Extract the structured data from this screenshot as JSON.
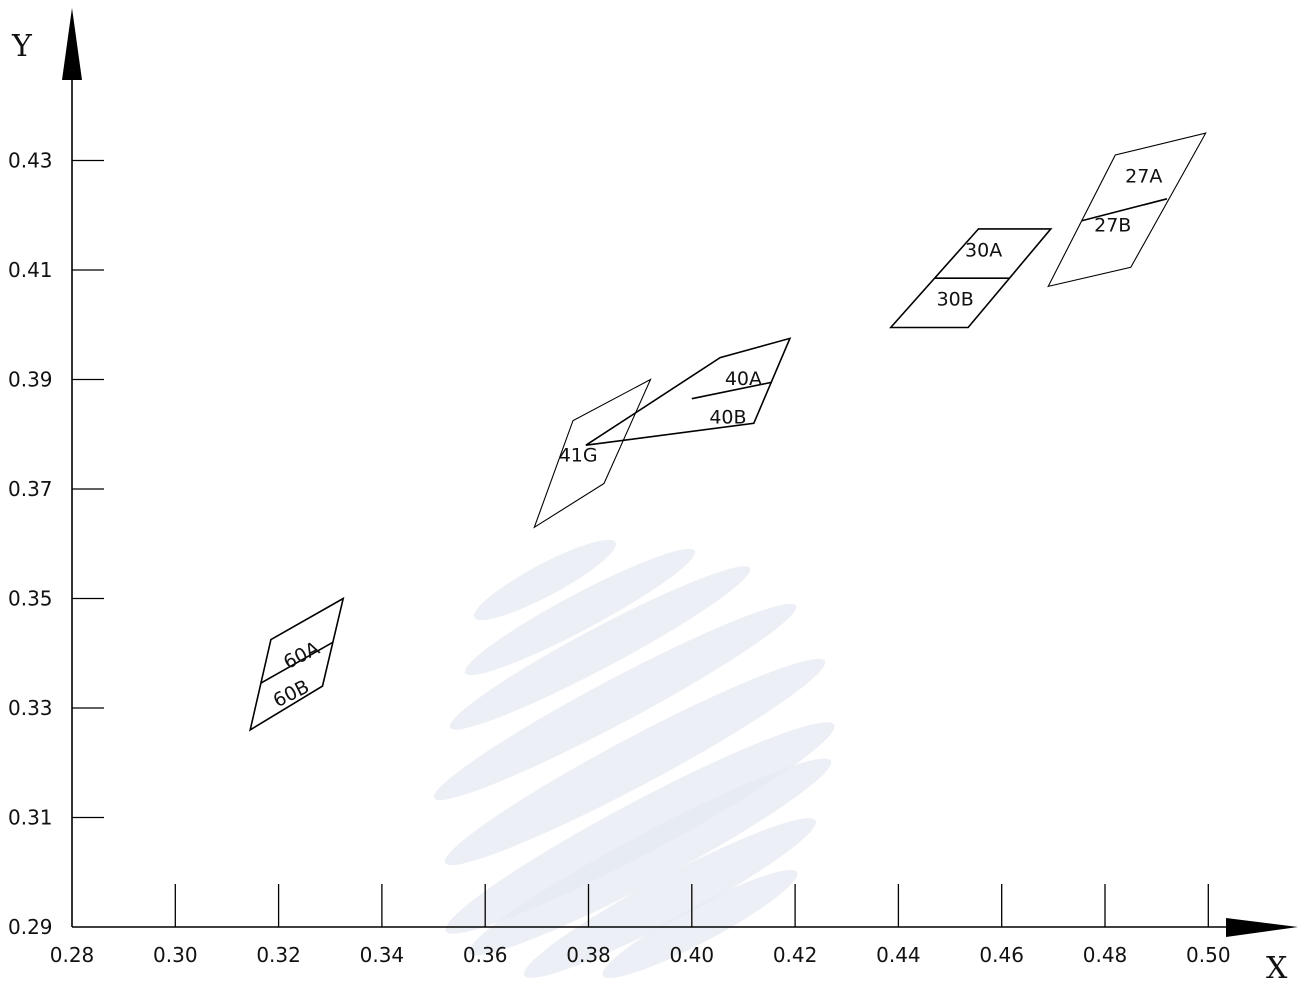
{
  "chart_data": {
    "type": "diagram",
    "axes": {
      "x": {
        "label": "X",
        "range": [
          0.28,
          0.52
        ],
        "ticks": [
          "0.28",
          "0.30",
          "0.32",
          "0.34",
          "0.36",
          "0.38",
          "0.40",
          "0.42",
          "0.44",
          "0.46",
          "0.48",
          "0.50"
        ]
      },
      "y": {
        "label": "Y",
        "range": [
          0.29,
          0.445
        ],
        "ticks": [
          "0.29",
          "0.31",
          "0.33",
          "0.35",
          "0.37",
          "0.39",
          "0.41",
          "0.43"
        ]
      }
    },
    "grid": false,
    "regions": [
      {
        "name": "60",
        "label_a": "60A",
        "label_b": "60B",
        "corners": [
          [
            0.3145,
            0.326
          ],
          [
            0.3285,
            0.334
          ],
          [
            0.3325,
            0.35
          ],
          [
            0.3185,
            0.3425
          ]
        ],
        "divider": [
          [
            0.3165,
            0.3345
          ],
          [
            0.3305,
            0.342
          ]
        ],
        "label_a_pos": [
          0.3245,
          0.3395
        ],
        "label_b_pos": [
          0.3225,
          0.3325
        ]
      },
      {
        "name": "41G",
        "label": "41G",
        "corners": [
          [
            0.3695,
            0.363
          ],
          [
            0.383,
            0.371
          ],
          [
            0.392,
            0.39
          ],
          [
            0.377,
            0.3825
          ]
        ],
        "label_pos": [
          0.378,
          0.376
        ]
      },
      {
        "name": "40",
        "label_a": "40A",
        "label_b": "40B",
        "corners": [
          [
            0.3795,
            0.378
          ],
          [
            0.412,
            0.382
          ],
          [
            0.419,
            0.3975
          ],
          [
            0.4055,
            0.394
          ]
        ],
        "divider": [
          [
            0.4,
            0.3865
          ],
          [
            0.4155,
            0.3895
          ]
        ],
        "label_a_pos": [
          0.41,
          0.39
        ],
        "label_b_pos": [
          0.407,
          0.383
        ]
      },
      {
        "name": "30",
        "label_a": "30A",
        "label_b": "30B",
        "corners": [
          [
            0.4385,
            0.3995
          ],
          [
            0.4535,
            0.3995
          ],
          [
            0.4695,
            0.4175
          ],
          [
            0.4555,
            0.4175
          ]
        ],
        "divider": [
          [
            0.447,
            0.4085
          ],
          [
            0.4615,
            0.4085
          ]
        ],
        "label_a_pos": [
          0.4565,
          0.4135
        ],
        "label_b_pos": [
          0.451,
          0.4045
        ]
      },
      {
        "name": "27",
        "label_a": "27A",
        "label_b": "27B",
        "corners": [
          [
            0.469,
            0.407
          ],
          [
            0.485,
            0.4105
          ],
          [
            0.4995,
            0.435
          ],
          [
            0.482,
            0.431
          ]
        ],
        "divider": [
          [
            0.4755,
            0.419
          ],
          [
            0.492,
            0.423
          ]
        ],
        "label_a_pos": [
          0.4875,
          0.427
        ],
        "label_b_pos": [
          0.4815,
          0.418
        ]
      }
    ],
    "watermark": {
      "description": "faint globe of diagonal stripes",
      "color": "#e6e9f2"
    }
  }
}
